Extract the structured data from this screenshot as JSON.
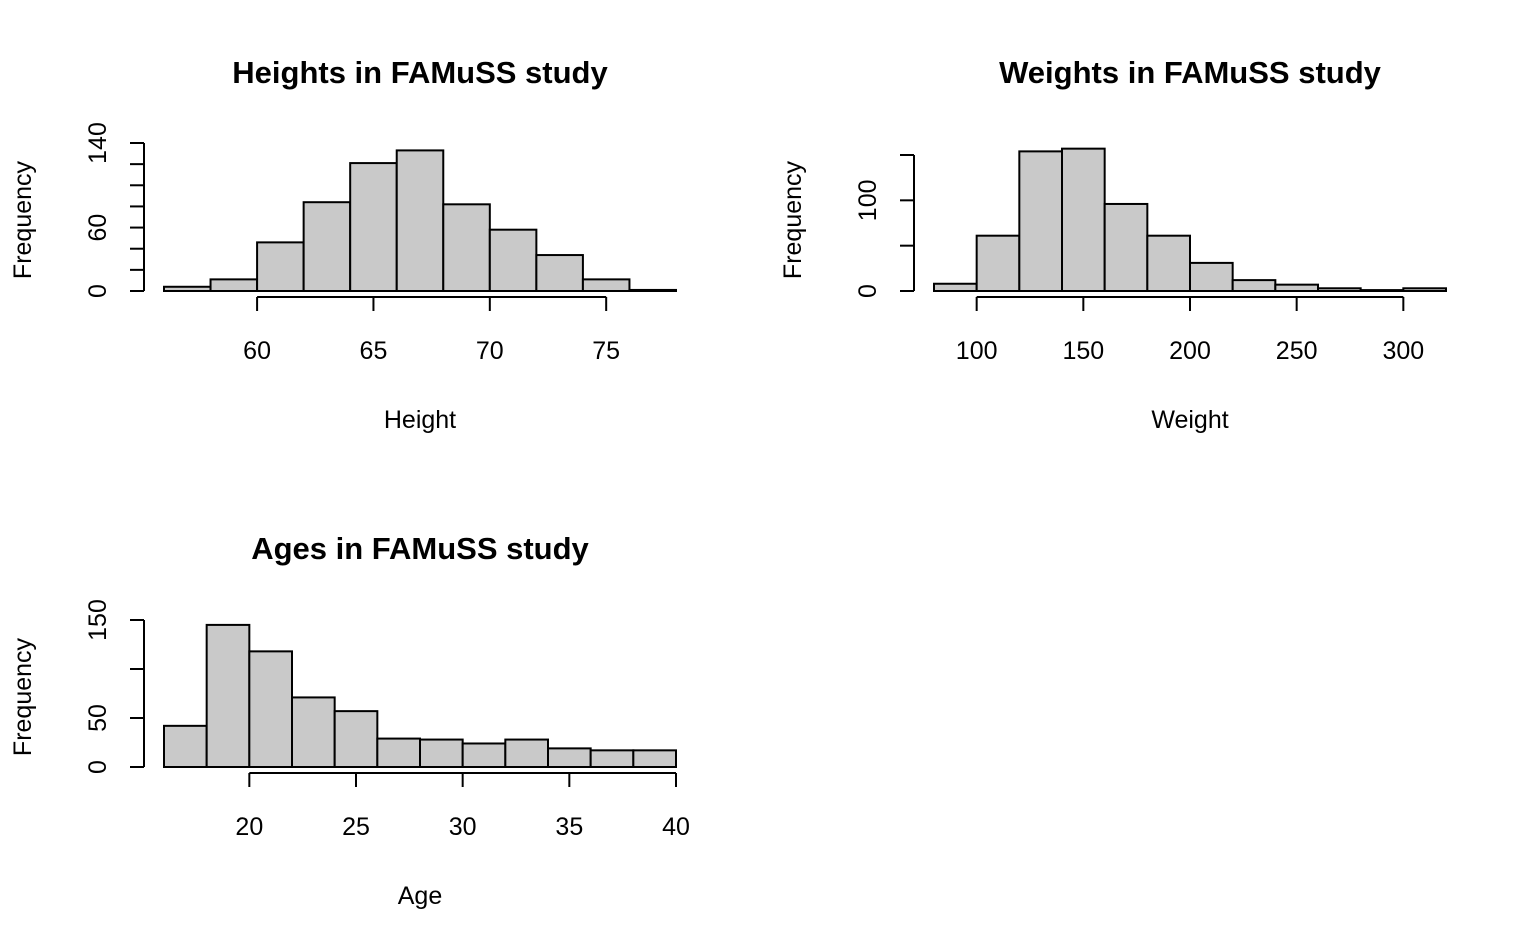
{
  "style": {
    "bar_fill": "#c9c9c9",
    "bar_stroke": "#000000",
    "background": "#ffffff"
  },
  "chart_data": [
    {
      "type": "bar",
      "title": "Heights in FAMuSS study",
      "xlabel": "Height",
      "ylabel": "Frequency",
      "bin_edges": [
        56,
        58,
        60,
        62,
        64,
        66,
        68,
        70,
        72,
        74,
        76,
        78
      ],
      "values": [
        4,
        11,
        46,
        84,
        121,
        133,
        82,
        58,
        34,
        11,
        1
      ],
      "xlim": [
        56,
        78
      ],
      "ylim": [
        0,
        140
      ],
      "x_ticks": [
        60,
        65,
        70,
        75
      ],
      "y_ticks": [
        0,
        20,
        40,
        60,
        80,
        100,
        120,
        140
      ],
      "y_tick_labels": [
        "0",
        "",
        "",
        "60",
        "",
        "",
        "",
        "140"
      ],
      "grid": false
    },
    {
      "type": "bar",
      "title": "Weights in FAMuSS study",
      "xlabel": "Weight",
      "ylabel": "Frequency",
      "bin_edges": [
        80,
        100,
        120,
        140,
        160,
        180,
        200,
        220,
        240,
        260,
        280,
        300,
        320
      ],
      "values": [
        8,
        61,
        154,
        157,
        96,
        61,
        31,
        12,
        7,
        3,
        1,
        3
      ],
      "xlim": [
        80,
        320
      ],
      "ylim": [
        0,
        150
      ],
      "x_ticks": [
        100,
        150,
        200,
        250,
        300
      ],
      "y_ticks": [
        0,
        50,
        100,
        150
      ],
      "y_tick_labels": [
        "0",
        "",
        "100",
        ""
      ],
      "grid": false
    },
    {
      "type": "bar",
      "title": "Ages in FAMuSS study",
      "xlabel": "Age",
      "ylabel": "Frequency",
      "bin_edges": [
        16,
        18,
        20,
        22,
        24,
        26,
        28,
        30,
        32,
        34,
        36,
        38,
        40
      ],
      "values": [
        42,
        145,
        118,
        71,
        57,
        29,
        28,
        24,
        28,
        19,
        17,
        17
      ],
      "xlim": [
        16,
        40
      ],
      "ylim": [
        0,
        150
      ],
      "x_ticks": [
        20,
        25,
        30,
        35,
        40
      ],
      "y_ticks": [
        0,
        50,
        100,
        150
      ],
      "y_tick_labels": [
        "0",
        "50",
        "",
        "150"
      ],
      "grid": false
    }
  ]
}
